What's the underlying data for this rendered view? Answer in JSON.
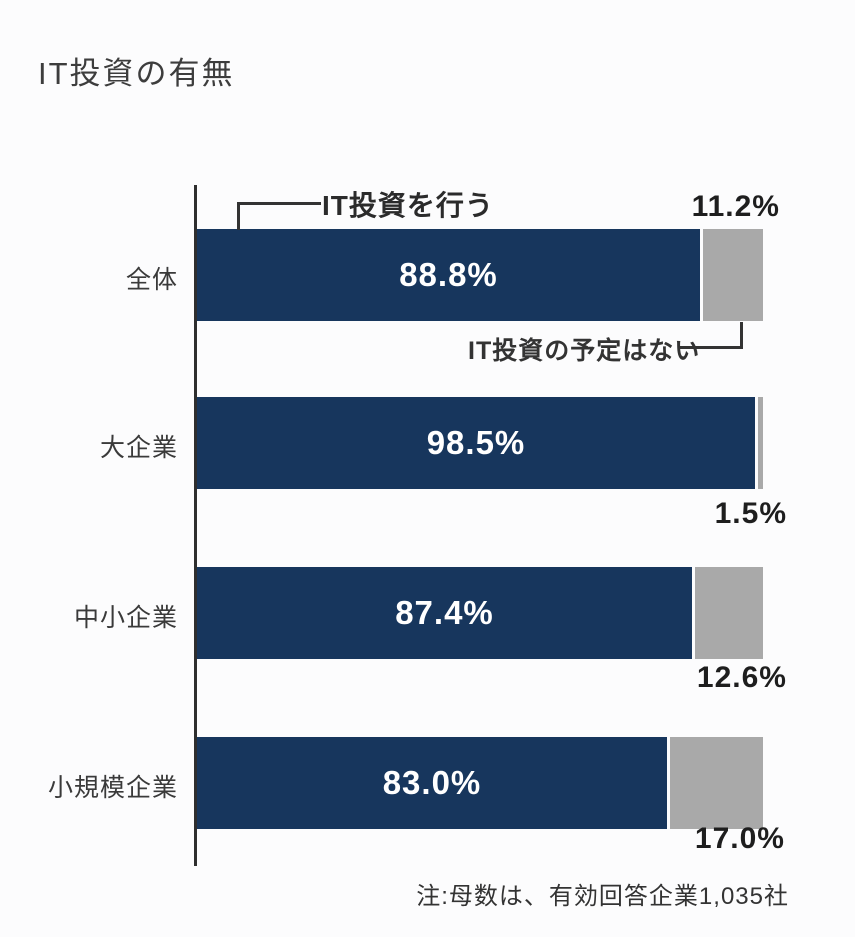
{
  "title": "IT投資の有無",
  "note": "注:母数は、有効回答企業1,035社",
  "annotations": {
    "invest_label": "IT投資を行う",
    "no_plan_label": "IT投資の予定はない"
  },
  "chart_data": {
    "type": "bar",
    "orientation": "horizontal",
    "stacked": true,
    "unit": "%",
    "title": "IT投資の有無",
    "categories": [
      "全体",
      "大企業",
      "中小企業",
      "小規模企業"
    ],
    "series": [
      {
        "name": "IT投資を行う",
        "color": "#17365d",
        "values": [
          88.8,
          98.5,
          87.4,
          83.0
        ]
      },
      {
        "name": "IT投資の予定はない",
        "color": "#a9a9a9",
        "values": [
          11.2,
          1.5,
          12.6,
          17.0
        ]
      }
    ],
    "xlim": [
      0,
      100
    ],
    "grid": false,
    "legend_position": "leader-line-annotations",
    "value_label_format": "{value}%",
    "no_plan_label_positions": [
      "above-bar-right",
      "below-bar-right",
      "below-bar-right",
      "below-bar-right"
    ]
  }
}
